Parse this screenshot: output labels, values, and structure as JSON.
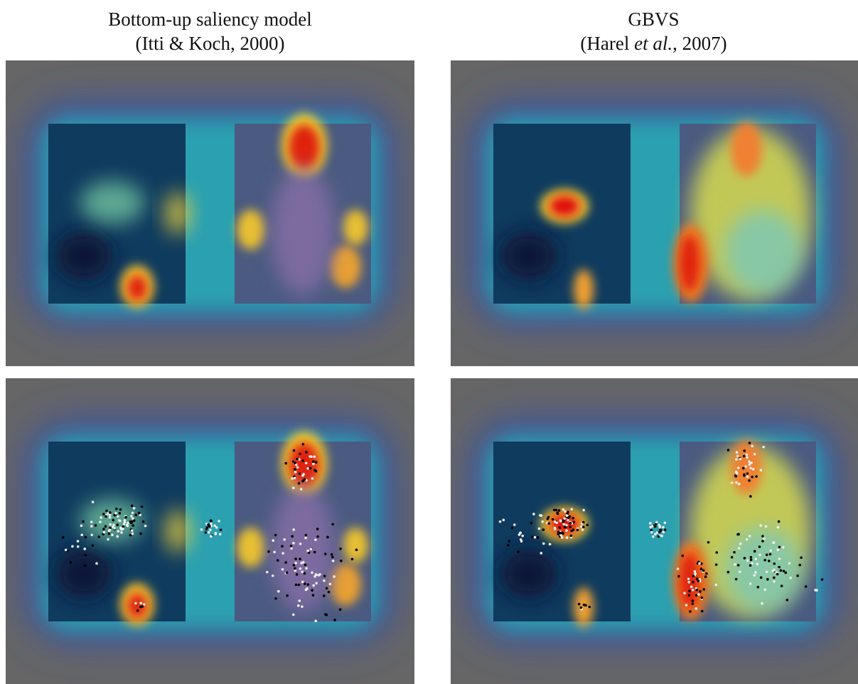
{
  "columns": [
    {
      "title": "Bottom-up saliency model",
      "citation": {
        "before": "(Itti & Koch, 2000)"
      }
    },
    {
      "title": "GBVS",
      "citation": {
        "before": "(Harel ",
        "italic": "et al.",
        "after": ", 2007)"
      }
    }
  ]
}
